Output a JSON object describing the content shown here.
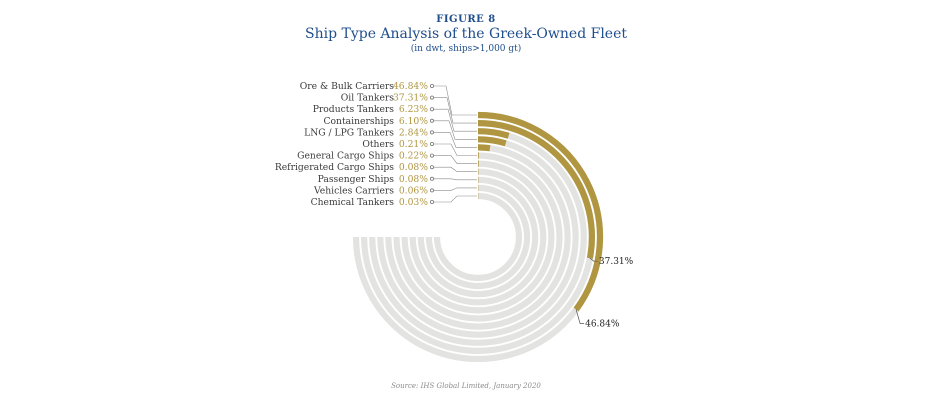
{
  "figure": {
    "label": "FIGURE 8",
    "title": "Ship Type Analysis of the Greek-Owned Fleet",
    "subtitle": "(in dwt, ships>1,000 gt)",
    "source": "Source: IHS Global Limited, January 2020"
  },
  "colors": {
    "accent": "#b09640",
    "track": "#e3e3e1",
    "text": "#3a3a3a",
    "title": "#1f4e8c"
  },
  "chart_data": {
    "type": "radial-bar",
    "title": "Ship Type Analysis of the Greek-Owned Fleet",
    "subtitle": "(in dwt, ships>1,000 gt)",
    "unit": "%",
    "max_value": 100,
    "max_sweep_degrees": 270,
    "categories": [
      {
        "name": "Ore & Bulk Carriers",
        "value": 46.84,
        "label": "46.84%"
      },
      {
        "name": "Oil Tankers",
        "value": 37.31,
        "label": "37.31%"
      },
      {
        "name": "Products Tankers",
        "value": 6.23,
        "label": "6.23%"
      },
      {
        "name": "Containerships",
        "value": 6.1,
        "label": "6.10%"
      },
      {
        "name": "LNG / LPG Tankers",
        "value": 2.84,
        "label": "2.84%"
      },
      {
        "name": "Others",
        "value": 0.21,
        "label": "0.21%"
      },
      {
        "name": "General Cargo Ships",
        "value": 0.22,
        "label": "0.22%"
      },
      {
        "name": "Refrigerated Cargo Ships",
        "value": 0.08,
        "label": "0.08%"
      },
      {
        "name": "Passenger Ships",
        "value": 0.08,
        "label": "0.08%"
      },
      {
        "name": "Vehicles Carriers",
        "value": 0.06,
        "label": "0.06%"
      },
      {
        "name": "Chemical Tankers",
        "value": 0.03,
        "label": "0.03%"
      }
    ],
    "end_labels": [
      {
        "series": "Oil Tankers",
        "text": "37.31%"
      },
      {
        "series": "Ore & Bulk Carriers",
        "text": "46.84%"
      }
    ]
  }
}
